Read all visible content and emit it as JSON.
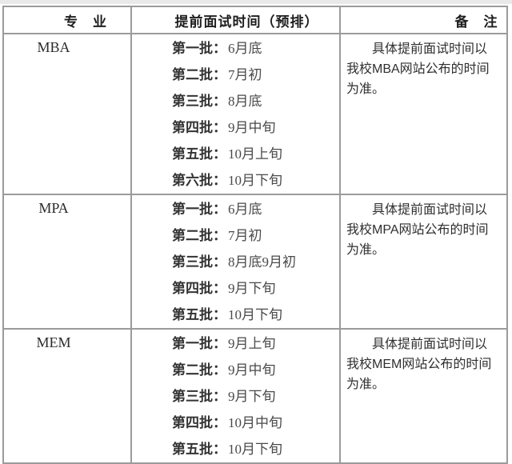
{
  "page": {
    "background": "#ffffff",
    "top_strip_color": "#e9e9e9"
  },
  "table": {
    "border_color": "#9b9b9b",
    "columns": [
      {
        "label": "专　业"
      },
      {
        "label": "提前面试时间（预排）"
      },
      {
        "label": "备　注"
      }
    ],
    "rows": [
      {
        "program": "MBA",
        "batches": [
          {
            "label": "第一批：",
            "time": "6月底"
          },
          {
            "label": "第二批：",
            "time": "7月初"
          },
          {
            "label": "第三批：",
            "time": "8月底"
          },
          {
            "label": "第四批：",
            "time": "9月中旬"
          },
          {
            "label": "第五批：",
            "time": "10月上旬"
          },
          {
            "label": "第六批：",
            "time": "10月下旬"
          }
        ],
        "remark": "具体提前面试时间以我校MBA网站公布的时间为准。",
        "remark_lines": [
          "具体提前面试时间以",
          "我校MBA网站公布的时间",
          "为准。"
        ]
      },
      {
        "program": "MPA",
        "batches": [
          {
            "label": "第一批：",
            "time": "6月底"
          },
          {
            "label": "第二批：",
            "time": "7月初"
          },
          {
            "label": "第三批：",
            "time": "8月底9月初"
          },
          {
            "label": "第四批：",
            "time": "9月下旬"
          },
          {
            "label": "第五批：",
            "time": "10月下旬"
          }
        ],
        "remark": "具体提前面试时间以我校MPA网站公布的时间为准。",
        "remark_lines": [
          "具体提前面试时间以",
          "我校MPA网站公布的时间",
          "为准。"
        ]
      },
      {
        "program": "MEM",
        "batches": [
          {
            "label": "第一批：",
            "time": "9月上旬"
          },
          {
            "label": "第二批：",
            "time": "9月中旬"
          },
          {
            "label": "第三批：",
            "time": "9月下旬"
          },
          {
            "label": "第四批：",
            "time": "10月中旬"
          },
          {
            "label": "第五批：",
            "time": "10月下旬"
          }
        ],
        "remark": "具体提前面试时间以我校MEM网站公布的时间为准。",
        "remark_lines": [
          "具体提前面试时间以",
          "我校MEM网站公布的时间",
          "为准。"
        ]
      }
    ]
  }
}
